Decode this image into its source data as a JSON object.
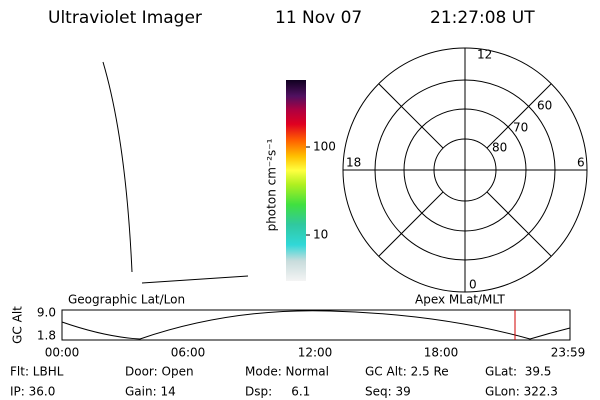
{
  "header": {
    "title": "Ultraviolet Imager",
    "date": "11 Nov 07",
    "time": "21:27:08 UT"
  },
  "colorbar": {
    "label": "photon cm⁻²s⁻¹",
    "ticks": [
      "100",
      "10"
    ]
  },
  "polar": {
    "labels": {
      "top": "12",
      "left": "18",
      "right": "6",
      "bottom": "0"
    },
    "rings": [
      "60",
      "70",
      "80"
    ]
  },
  "altitude_plot": {
    "left_label": "Geographic Lat/Lon",
    "right_label": "Apex MLat/MLT",
    "y_label": "GC Alt",
    "yticks": [
      "9.0",
      "1.8"
    ],
    "xticks": [
      "00:00",
      "06:00",
      "12:00",
      "18:00",
      "23:59"
    ]
  },
  "info": {
    "rows": [
      [
        "Flt: LBHL",
        "Door: Open",
        "Mode: Normal",
        "GC Alt: 2.5 Re",
        "GLat:  39.5"
      ],
      [
        "IP: 36.0",
        "Gain: 14",
        "Dsp:     6.1",
        "Seq: 39",
        "GLon: 322.3"
      ]
    ]
  }
}
